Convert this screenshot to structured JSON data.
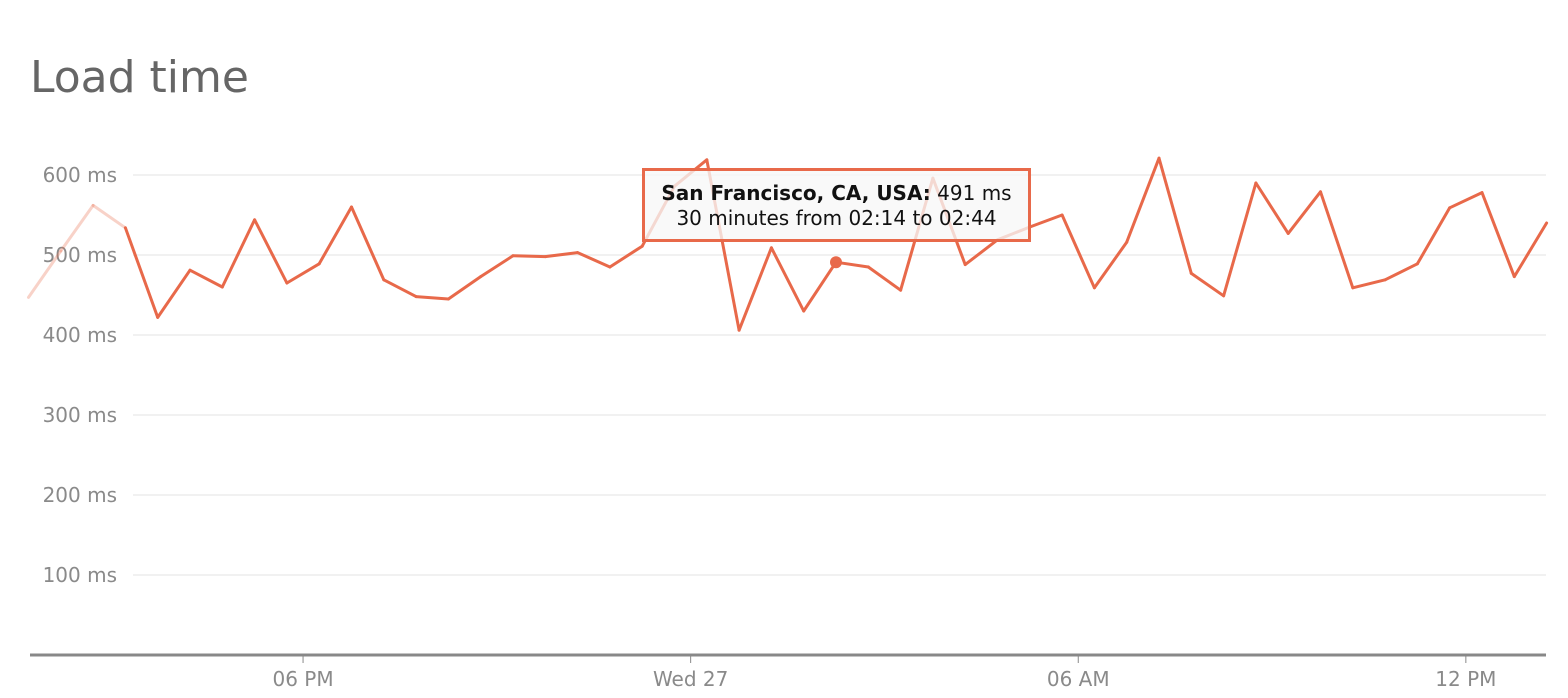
{
  "chart_data": {
    "type": "line",
    "title": "Load time",
    "ylabel": "",
    "xlabel": "",
    "ylim": [
      0,
      600
    ],
    "y_ticks": [
      "100 ms",
      "200 ms",
      "300 ms",
      "400 ms",
      "500 ms",
      "600 ms"
    ],
    "y_tick_values": [
      100,
      200,
      300,
      400,
      500,
      600
    ],
    "x_ticks": [
      {
        "label": "06 PM",
        "index": 8.5
      },
      {
        "label": "Wed 27",
        "index": 20.5
      },
      {
        "label": "06 AM",
        "index": 32.5
      },
      {
        "label": "12 PM",
        "index": 44.5
      }
    ],
    "interval_minutes": 30,
    "faded_until_index": 3,
    "series": [
      {
        "name": "San Francisco, CA, USA",
        "color": "#e8694a",
        "values": [
          447,
          505,
          562,
          534,
          422,
          481,
          460,
          544,
          465,
          489,
          560,
          469,
          448,
          445,
          473,
          499,
          498,
          503,
          485,
          511,
          586,
          619,
          406,
          509,
          430,
          491,
          485,
          456,
          596,
          488,
          519,
          535,
          550,
          459,
          516,
          621,
          477,
          449,
          590,
          527,
          579,
          459,
          469,
          489,
          559,
          578,
          473,
          540
        ]
      }
    ],
    "highlight": {
      "index": 25,
      "location": "San Francisco, CA, USA:",
      "value": "491 ms",
      "period": "30 minutes from 02:14 to 02:44"
    },
    "grid": true,
    "legend": "none"
  }
}
